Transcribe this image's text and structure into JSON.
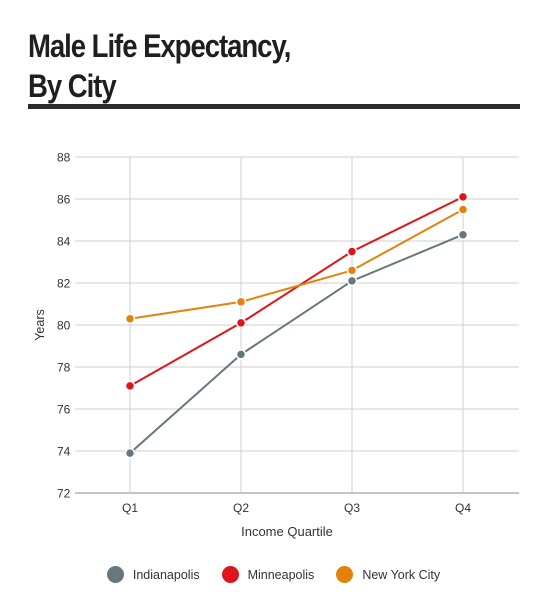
{
  "title": {
    "line1": "Male Life Expectancy,",
    "line2": "By City"
  },
  "chart_data": {
    "type": "line",
    "categories": [
      "Q1",
      "Q2",
      "Q3",
      "Q4"
    ],
    "xlabel": "Income Quartile",
    "ylabel": "Years",
    "ylim": [
      72,
      88
    ],
    "yticks": [
      72,
      74,
      76,
      78,
      80,
      82,
      84,
      86,
      88
    ],
    "grid": true,
    "legend_position": "bottom",
    "series": [
      {
        "name": "Indianapolis",
        "color": "#667780",
        "values": [
          73.9,
          78.6,
          82.1,
          84.3
        ]
      },
      {
        "name": "Minneapolis",
        "color": "#e0151b",
        "values": [
          77.1,
          80.1,
          83.5,
          86.1
        ]
      },
      {
        "name": "New York City",
        "color": "#e5820b",
        "values": [
          80.3,
          81.1,
          82.6,
          85.5
        ]
      }
    ]
  }
}
